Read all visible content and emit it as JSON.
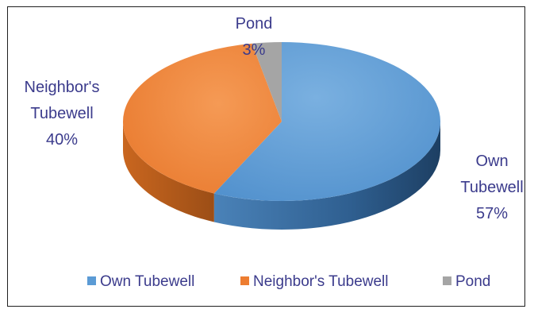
{
  "chart_data": {
    "type": "pie",
    "title": "",
    "slices": [
      {
        "name": "Own Tubewell",
        "value": 57,
        "percent_label": "57%",
        "label_lines": [
          "Own",
          "Tubewell"
        ],
        "color": "#5b9bd5"
      },
      {
        "name": "Neighbor's Tubewell",
        "value": 40,
        "percent_label": "40%",
        "label_lines": [
          "Neighbor's",
          "Tubewell"
        ],
        "color": "#ed7d31"
      },
      {
        "name": "Pond",
        "value": 3,
        "percent_label": "3%",
        "label_lines": [
          "Pond"
        ],
        "color": "#a5a5a5"
      }
    ],
    "legend": {
      "position": "bottom",
      "items": [
        "Own Tubewell",
        "Neighbor's Tubewell",
        "Pond"
      ]
    },
    "style": "3d"
  }
}
